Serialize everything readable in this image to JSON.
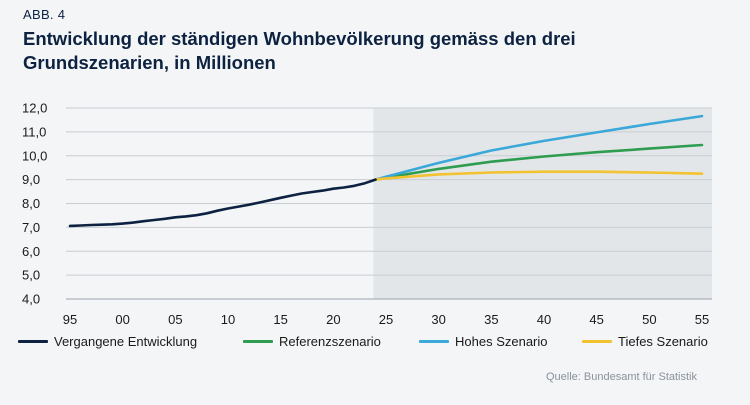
{
  "figure_label": "ABB. 4",
  "title": "Entwicklung der ständigen Wohnbevölkerung gemäss den drei Grundszenarien, in Millionen",
  "source": "Quelle: Bundesamt für Statistik",
  "chart_data": {
    "type": "line",
    "title": "Entwicklung der ständigen Wohnbevölkerung gemäss den drei Grundszenarien, in Millionen",
    "xlabel": "",
    "ylabel": "in Millionen",
    "xlim": [
      1995,
      2055
    ],
    "ylim": [
      4.0,
      12.0
    ],
    "x_ticks": [
      1995,
      2000,
      2005,
      2010,
      2015,
      2020,
      2025,
      2030,
      2035,
      2040,
      2045,
      2050,
      2055
    ],
    "x_tick_labels": [
      "95",
      "00",
      "05",
      "10",
      "15",
      "20",
      "25",
      "30",
      "35",
      "40",
      "45",
      "50",
      "55"
    ],
    "y_ticks": [
      4.0,
      5.0,
      6.0,
      7.0,
      8.0,
      9.0,
      10.0,
      11.0,
      12.0
    ],
    "y_tick_labels": [
      "4,0",
      "5,0",
      "6,0",
      "7,0",
      "8,0",
      "9,0",
      "10,0",
      "11,0",
      "12,0"
    ],
    "projection_shading_start": 2024,
    "series": [
      {
        "name": "Vergangene Entwicklung",
        "color": "#0d2240",
        "x": [
          1995,
          1996,
          1997,
          1998,
          1999,
          2000,
          2001,
          2002,
          2003,
          2004,
          2005,
          2006,
          2007,
          2008,
          2009,
          2010,
          2011,
          2012,
          2013,
          2014,
          2015,
          2016,
          2017,
          2018,
          2019,
          2020,
          2021,
          2022,
          2023,
          2024
        ],
        "values": [
          7.06,
          7.08,
          7.1,
          7.11,
          7.13,
          7.16,
          7.2,
          7.26,
          7.31,
          7.36,
          7.42,
          7.46,
          7.51,
          7.59,
          7.7,
          7.79,
          7.87,
          7.95,
          8.04,
          8.14,
          8.24,
          8.33,
          8.42,
          8.48,
          8.54,
          8.62,
          8.67,
          8.74,
          8.85,
          9.0
        ]
      },
      {
        "name": "Referenzszenario",
        "color": "#2e9d4f",
        "x": [
          2024,
          2025,
          2030,
          2035,
          2040,
          2045,
          2050,
          2055
        ],
        "values": [
          9.0,
          9.08,
          9.45,
          9.75,
          9.97,
          10.15,
          10.3,
          10.45
        ]
      },
      {
        "name": "Hohes Szenario",
        "color": "#3aa8d8",
        "x": [
          2024,
          2025,
          2030,
          2035,
          2040,
          2045,
          2050,
          2055
        ],
        "values": [
          9.0,
          9.12,
          9.7,
          10.22,
          10.62,
          10.98,
          11.33,
          11.66
        ]
      },
      {
        "name": "Tiefes Szenario",
        "color": "#f2c230",
        "x": [
          2024,
          2025,
          2030,
          2035,
          2040,
          2045,
          2050,
          2055
        ],
        "values": [
          9.0,
          9.05,
          9.22,
          9.3,
          9.33,
          9.33,
          9.3,
          9.25
        ]
      }
    ]
  }
}
